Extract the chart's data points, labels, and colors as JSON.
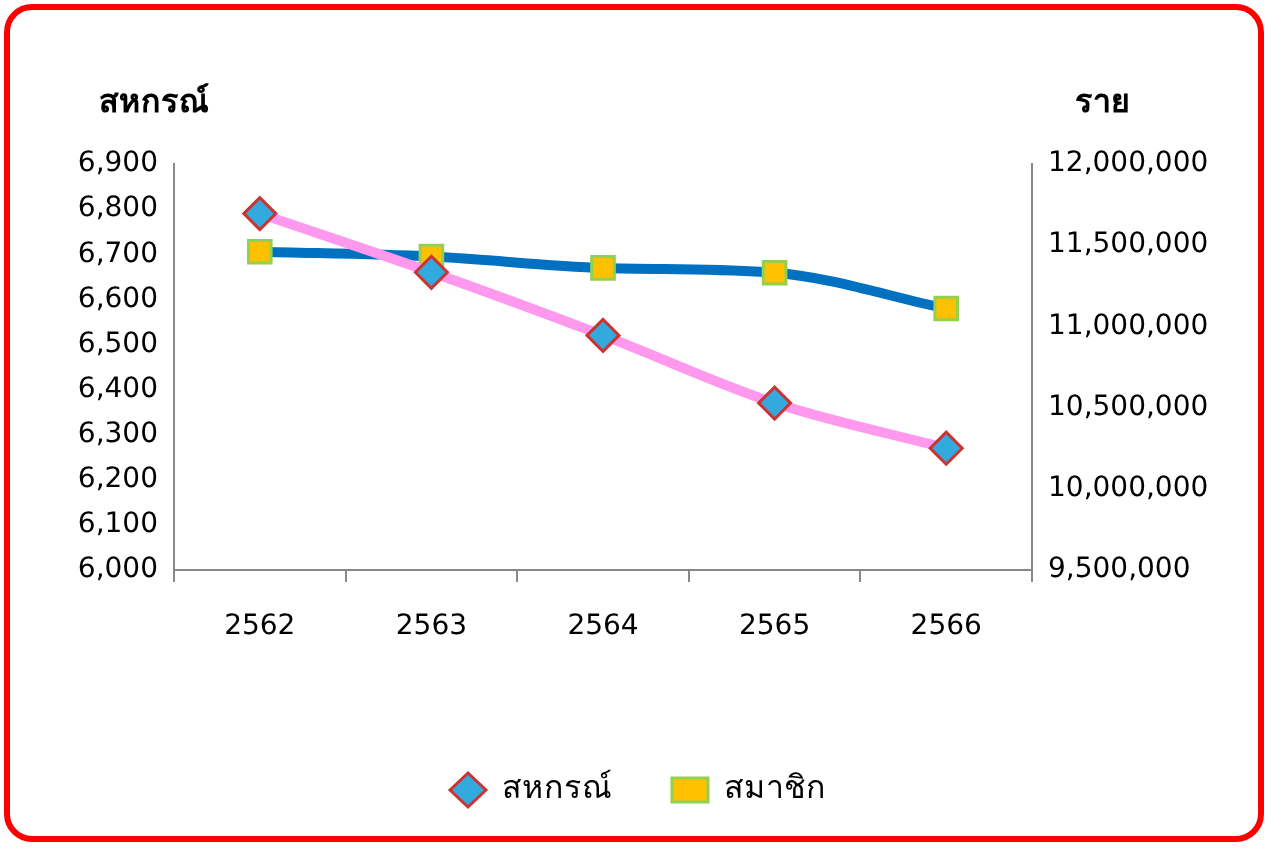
{
  "chart_data": {
    "type": "line",
    "ylabel": "สหกรณ์",
    "y2label": "ราย",
    "categories": [
      "2562",
      "2563",
      "2564",
      "2565",
      "2566"
    ],
    "series": [
      {
        "name": "สหกรณ์",
        "color": "#ff99ee",
        "marker": "diamond",
        "values": [
          6790,
          6660,
          6520,
          6370,
          6270
        ]
      },
      {
        "name": "สมาชิก",
        "color": "#0070c0",
        "marker": "square",
        "axis": "y2",
        "values": [
          11460000,
          11430000,
          11360000,
          11330000,
          11110000
        ]
      }
    ],
    "ylim": [
      6000,
      6900
    ],
    "yticks": [
      {
        "value": 6000,
        "label": "6,000"
      },
      {
        "value": 6100,
        "label": "6,100"
      },
      {
        "value": 6200,
        "label": "6,200"
      },
      {
        "value": 6300,
        "label": "6,300"
      },
      {
        "value": 6400,
        "label": "6,400"
      },
      {
        "value": 6500,
        "label": "6,500"
      },
      {
        "value": 6600,
        "label": "6,600"
      },
      {
        "value": 6700,
        "label": "6,700"
      },
      {
        "value": 6800,
        "label": "6,800"
      },
      {
        "value": 6900,
        "label": "6,900"
      }
    ],
    "y2lim": [
      9500000,
      12000000
    ],
    "y2ticks": [
      {
        "value": 9500000,
        "label": "9,500,000"
      },
      {
        "value": 10000000,
        "label": "10,000,000"
      },
      {
        "value": 10500000,
        "label": "10,500,000"
      },
      {
        "value": 11000000,
        "label": "11,000,000"
      },
      {
        "value": 11500000,
        "label": "11,500,000"
      },
      {
        "value": 12000000,
        "label": "12,000,000"
      }
    ],
    "grid": false,
    "legend": "bottom",
    "line_style": "solid"
  }
}
